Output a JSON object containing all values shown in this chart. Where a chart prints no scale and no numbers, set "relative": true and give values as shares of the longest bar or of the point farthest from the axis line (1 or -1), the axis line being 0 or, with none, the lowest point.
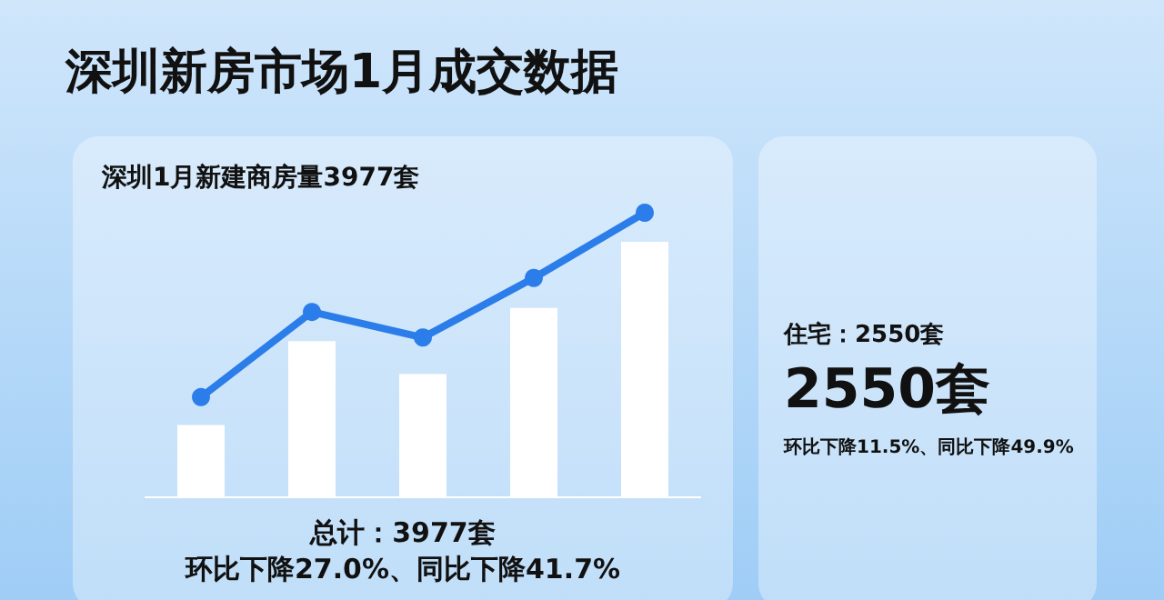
{
  "chart_data": [
    {
      "type": "bar",
      "title": "深圳新房市场1月成交数据",
      "subtitle": "深圳1月新建商房量3977套",
      "categories": [
        null,
        null,
        null,
        null,
        null
      ],
      "relative": true,
      "color": "#ffffff",
      "values": [
        0.28,
        0.61,
        0.48,
        0.74,
        1
      ],
      "annotations": [
        "总计：3977套",
        "环比下降27.0%、同比下降41.7%"
      ]
    },
    {
      "type": "line",
      "categories": [
        null,
        null,
        null,
        null,
        null
      ],
      "relative": true,
      "marker": "circle",
      "color": "#2b7de9",
      "values": [
        0.35,
        0.65,
        0.56,
        0.77,
        1
      ]
    },
    {
      "type": "other",
      "title": "住宅：2550套",
      "annotations": [
        "2550套",
        "环比下降11.5%、同比下降49.9%"
      ]
    }
  ]
}
